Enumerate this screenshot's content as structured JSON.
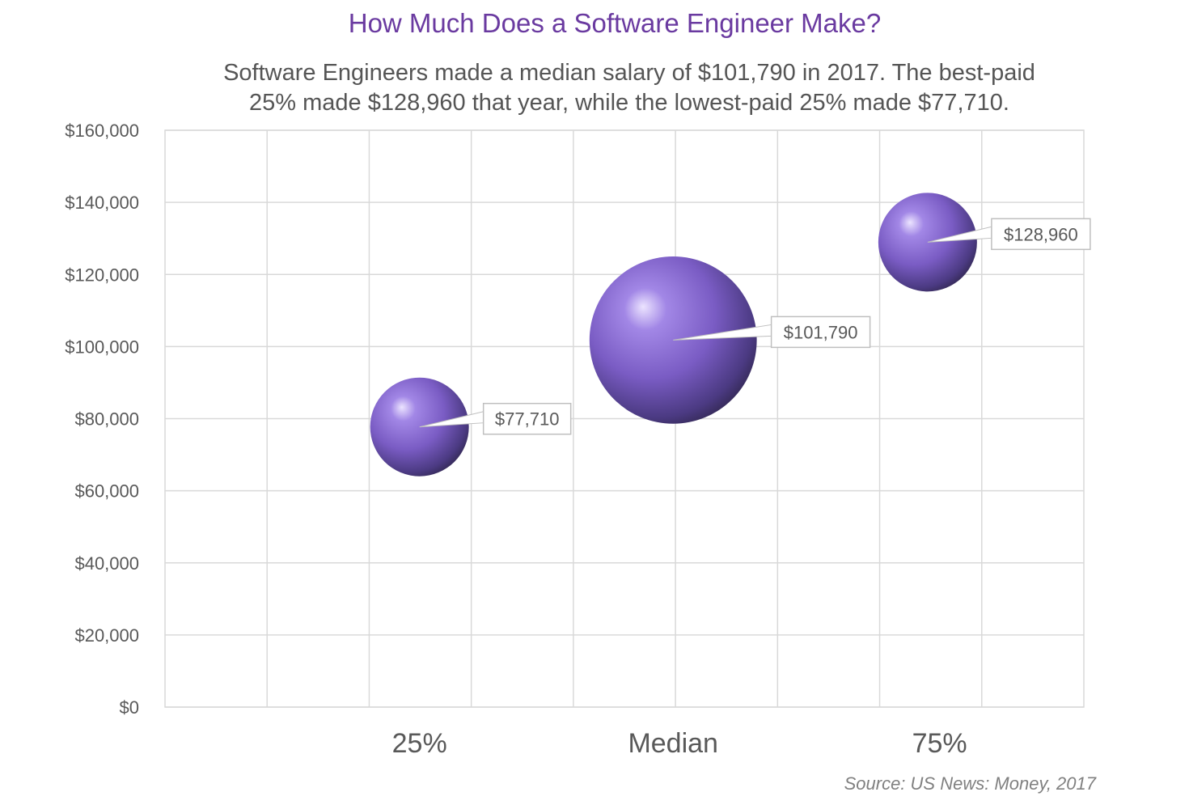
{
  "title": "How Much Does a Software Engineer Make?",
  "subtitle": {
    "line1": "Software Engineers made a median salary of $101,790 in 2017. The best-paid",
    "line2": "25% made $128,960 that year, while the lowest-paid 25% made $77,710."
  },
  "source": "Source: US News: Money, 2017",
  "colors": {
    "bubble": "#7a5cc4",
    "bubble_highlight": "#e6dcff",
    "bubble_shadow": "#352a57",
    "title": "#6a3aa0",
    "grid": "#d9d9d9",
    "text": "#595959"
  },
  "chart_data": {
    "type": "bubble",
    "title": "How Much Does a Software Engineer Make?",
    "categories": [
      "25%",
      "Median",
      "75%"
    ],
    "values": [
      77710,
      101790,
      128960
    ],
    "data_labels": [
      "$77,710",
      "$101,790",
      "$128,960"
    ],
    "relative_bubble_size": [
      1,
      1.7,
      1
    ],
    "ylim": [
      0,
      160000
    ],
    "yticks": [
      0,
      20000,
      40000,
      60000,
      80000,
      100000,
      120000,
      140000,
      160000
    ],
    "ytick_labels": [
      "$0",
      "$20,000",
      "$40,000",
      "$60,000",
      "$80,000",
      "$100,000",
      "$120,000",
      "$140,000",
      "$160,000"
    ],
    "xlabel": "",
    "ylabel": "",
    "grid": true,
    "legend": "none"
  }
}
